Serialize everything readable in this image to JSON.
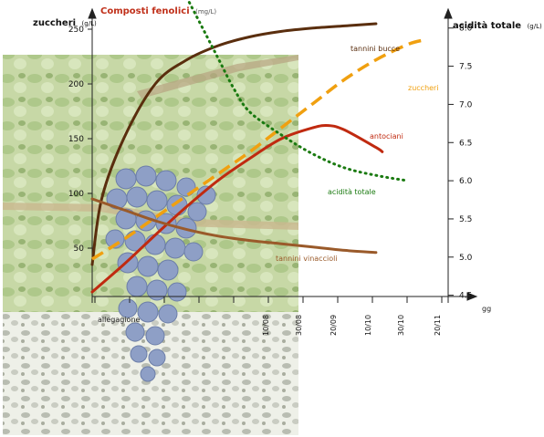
{
  "chart_data": {
    "type": "line",
    "title": "",
    "left_axis": {
      "title": "zuccheri",
      "unit": "(g/L)",
      "ticks": [
        50,
        100,
        150,
        200,
        250
      ],
      "range": [
        0,
        265
      ]
    },
    "phenolic_axis": {
      "title": "Composti fenolici",
      "unit": "(mg/L)"
    },
    "right_axis": {
      "title": "acidità totale",
      "unit": "(g/L)",
      "ticks": [
        "4.5",
        "5.0",
        "5.5",
        "6.0",
        "6.5",
        "7.0",
        "7.5",
        "8.0"
      ],
      "range": [
        4.4,
        8.2
      ]
    },
    "x_axis": {
      "unit_label": "gg",
      "origin_label": "allegagione",
      "date_labels": [
        "10/08",
        "30/08",
        "20/09",
        "10/10",
        "30/10",
        "20/11"
      ],
      "range": [
        0,
        11
      ]
    },
    "series": [
      {
        "name": "tannini bucce",
        "color": "#5a2e0e",
        "style": "solid",
        "axis": "left",
        "points": [
          [
            0,
            35
          ],
          [
            0.3,
            95
          ],
          [
            1,
            150
          ],
          [
            2,
            200
          ],
          [
            3,
            222
          ],
          [
            4,
            235
          ],
          [
            5,
            243
          ],
          [
            6,
            248
          ],
          [
            7,
            251
          ],
          [
            8,
            253
          ],
          [
            9,
            255
          ]
        ]
      },
      {
        "name": "zuccheri",
        "color": "#f0a010",
        "style": "dashed",
        "axis": "left",
        "points": [
          [
            0,
            40
          ],
          [
            1,
            58
          ],
          [
            2,
            78
          ],
          [
            3,
            98
          ],
          [
            4,
            118
          ],
          [
            5,
            138
          ],
          [
            6,
            160
          ],
          [
            7,
            182
          ],
          [
            8,
            204
          ],
          [
            9,
            222
          ],
          [
            10,
            236
          ],
          [
            10.5,
            240
          ]
        ]
      },
      {
        "name": "antociani",
        "color": "#c02a10",
        "style": "solid",
        "axis": "left",
        "points": [
          [
            0,
            10
          ],
          [
            1,
            35
          ],
          [
            2,
            62
          ],
          [
            3,
            88
          ],
          [
            4,
            112
          ],
          [
            5,
            132
          ],
          [
            6,
            150
          ],
          [
            7,
            160
          ],
          [
            7.5,
            162
          ],
          [
            8,
            158
          ],
          [
            9,
            142
          ],
          [
            9.2,
            138
          ]
        ]
      },
      {
        "name": "tannini vinaccioli",
        "color": "#9a5a2a",
        "style": "solid",
        "axis": "left",
        "points": [
          [
            0,
            95
          ],
          [
            1,
            85
          ],
          [
            2,
            75
          ],
          [
            3,
            67
          ],
          [
            4,
            61
          ],
          [
            5,
            57
          ],
          [
            6,
            54
          ],
          [
            7,
            51
          ],
          [
            8,
            48
          ],
          [
            9,
            46
          ]
        ]
      },
      {
        "name": "acidità totale",
        "color": "#1a7a10",
        "style": "dotted",
        "axis": "right",
        "points": [
          [
            3,
            8.4
          ],
          [
            3.5,
            8.0
          ],
          [
            4,
            7.6
          ],
          [
            4.5,
            7.2
          ],
          [
            5,
            6.9
          ],
          [
            6,
            6.6
          ],
          [
            7,
            6.35
          ],
          [
            8,
            6.17
          ],
          [
            9,
            6.07
          ],
          [
            10,
            6.0
          ]
        ]
      }
    ]
  }
}
